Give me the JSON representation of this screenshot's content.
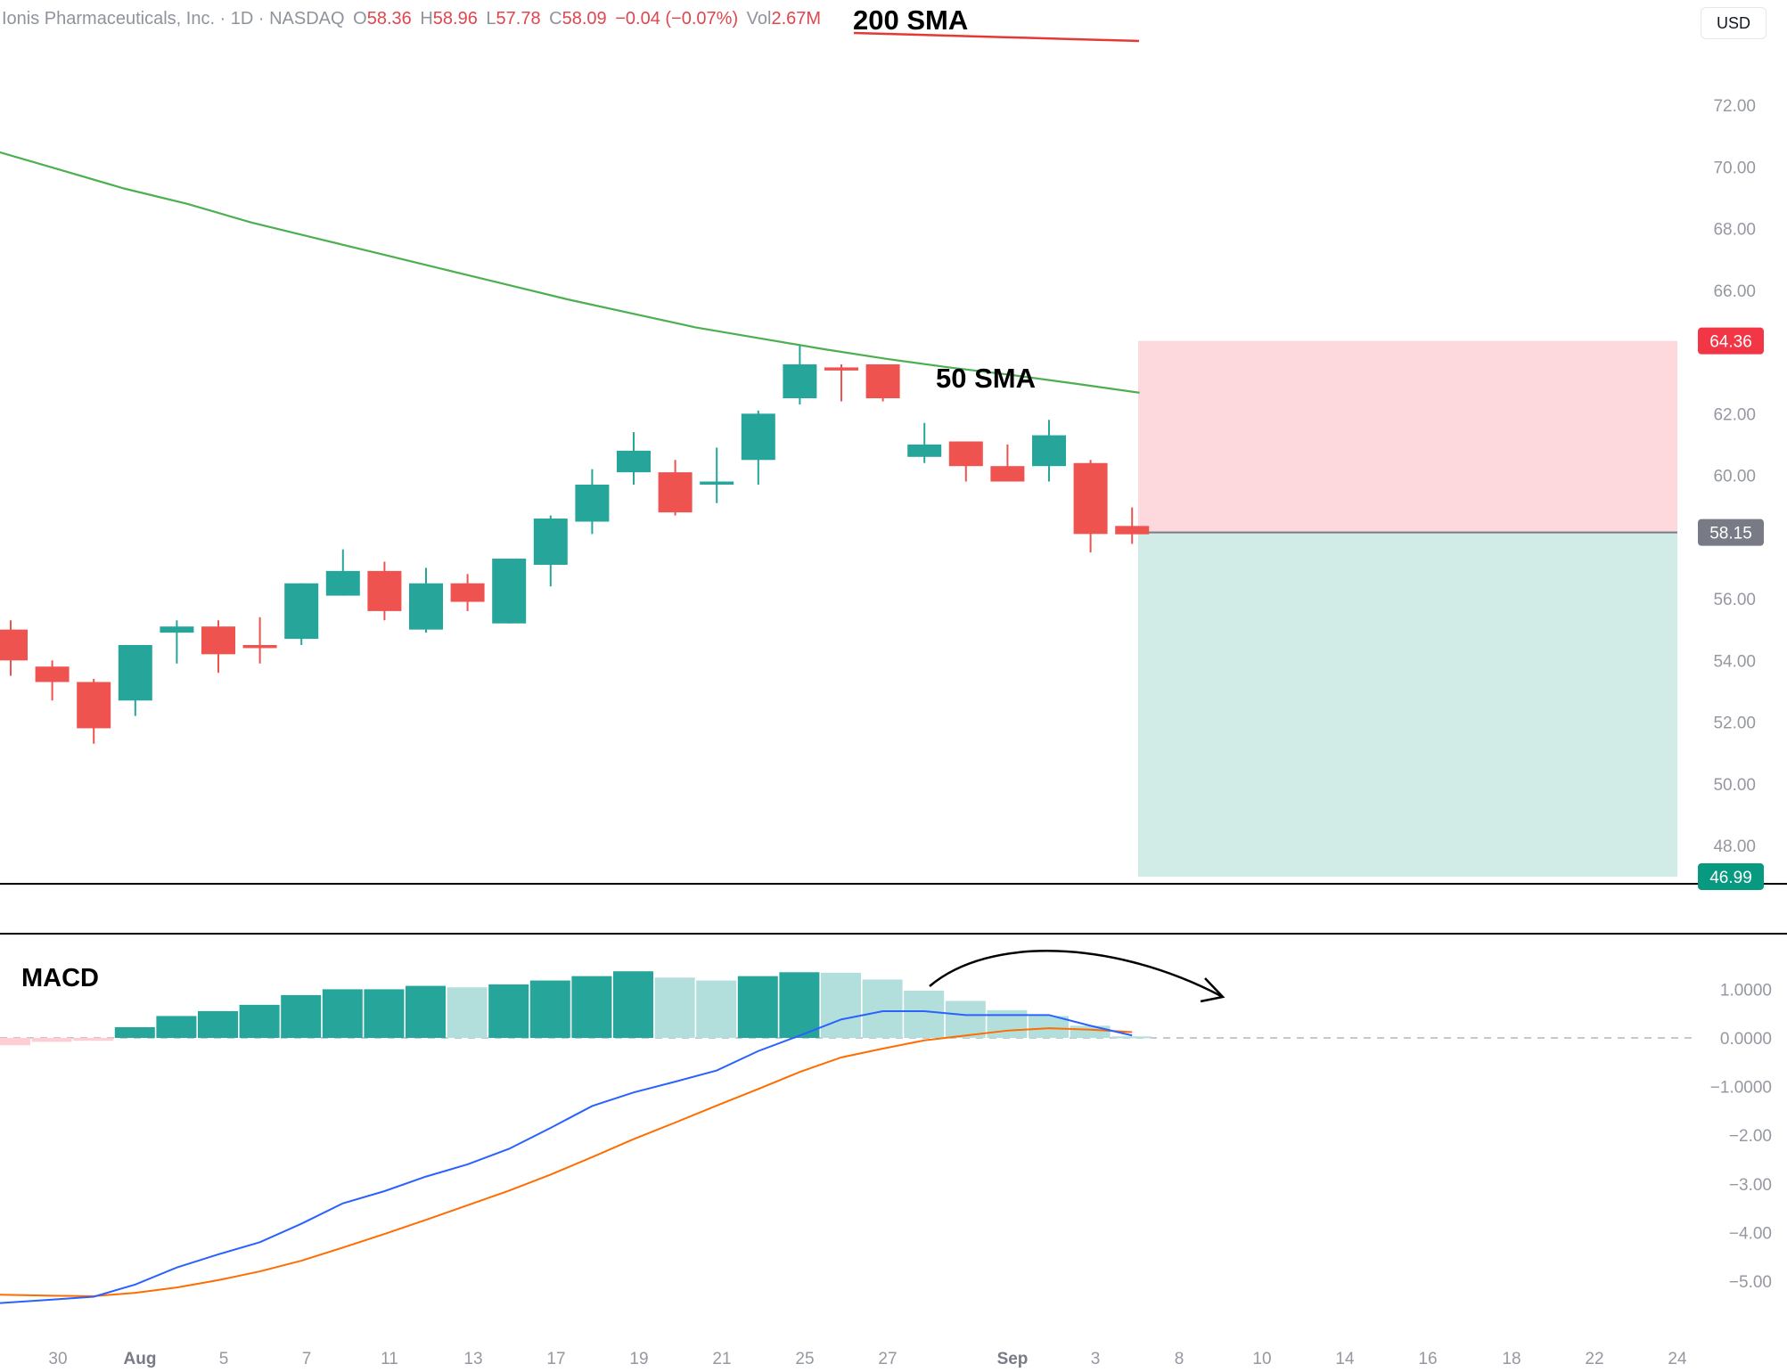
{
  "header": {
    "name": "Ionis Pharmaceuticals, Inc. · 1D · NASDAQ",
    "o_label": "O",
    "o_value": "58.36",
    "h_label": "H",
    "h_value": "58.96",
    "l_label": "L",
    "l_value": "57.78",
    "c_label": "C",
    "c_value": "58.09",
    "change": "−0.04 (−0.07%)",
    "vol_label": "Vol",
    "vol_value": "2.67M"
  },
  "currency_button": "USD",
  "annotations": {
    "sma200": "200 SMA",
    "sma50": "50 SMA",
    "macd": "MACD"
  },
  "colors": {
    "up": "#26a69a",
    "down": "#ef5350",
    "sma50": "#4caf50",
    "sma200": "#e53935",
    "macd_line": "#2962ff",
    "signal_line": "#ff6d00",
    "hist_up_strong": "#26a69a",
    "hist_up_weak": "#b2dfdb",
    "hist_down_weak": "#ffcdd2",
    "stop_zone": "#fdd8dc",
    "target_zone": "#d1ebe6",
    "badge_stop": "#f23645",
    "badge_entry": "#787b86",
    "badge_target": "#089981"
  },
  "chart_data": [
    {
      "type": "candlestick",
      "title": "Ionis Pharmaceuticals, Inc. · 1D · NASDAQ",
      "ylim": [
        46.5,
        74
      ],
      "y_ticks": [
        "72.00",
        "70.00",
        "68.00",
        "66.00",
        "62.00",
        "60.00",
        "56.00",
        "54.00",
        "52.00",
        "50.00",
        "48.00"
      ],
      "x_ticks": [
        "30",
        "Aug",
        "5",
        "7",
        "11",
        "13",
        "17",
        "19",
        "21",
        "25",
        "27",
        "Sep",
        "3",
        "8",
        "10",
        "14",
        "16",
        "18",
        "22",
        "24"
      ],
      "x_ticks_bold": [
        "Aug",
        "Sep"
      ],
      "candles": [
        {
          "o": 55.0,
          "h": 55.3,
          "l": 53.5,
          "c": 54.0
        },
        {
          "o": 53.8,
          "h": 54.0,
          "l": 52.7,
          "c": 53.3
        },
        {
          "o": 53.3,
          "h": 53.4,
          "l": 51.3,
          "c": 51.8
        },
        {
          "o": 52.7,
          "h": 54.5,
          "l": 52.2,
          "c": 54.5
        },
        {
          "o": 54.9,
          "h": 55.3,
          "l": 53.9,
          "c": 55.1
        },
        {
          "o": 55.1,
          "h": 55.3,
          "l": 53.6,
          "c": 54.2
        },
        {
          "o": 54.5,
          "h": 55.4,
          "l": 53.9,
          "c": 54.4
        },
        {
          "o": 54.7,
          "h": 56.5,
          "l": 54.5,
          "c": 56.5
        },
        {
          "o": 56.1,
          "h": 57.6,
          "l": 56.1,
          "c": 56.9
        },
        {
          "o": 56.9,
          "h": 57.2,
          "l": 55.3,
          "c": 55.6
        },
        {
          "o": 55.0,
          "h": 57.0,
          "l": 54.9,
          "c": 56.5
        },
        {
          "o": 56.5,
          "h": 56.8,
          "l": 55.6,
          "c": 55.9
        },
        {
          "o": 55.2,
          "h": 57.3,
          "l": 55.2,
          "c": 57.3
        },
        {
          "o": 57.1,
          "h": 58.7,
          "l": 56.4,
          "c": 58.6
        },
        {
          "o": 58.5,
          "h": 60.2,
          "l": 58.1,
          "c": 59.7
        },
        {
          "o": 60.1,
          "h": 61.4,
          "l": 59.7,
          "c": 60.8
        },
        {
          "o": 60.1,
          "h": 60.5,
          "l": 58.7,
          "c": 58.8
        },
        {
          "o": 59.7,
          "h": 60.9,
          "l": 59.1,
          "c": 59.8
        },
        {
          "o": 60.5,
          "h": 62.1,
          "l": 59.7,
          "c": 62.0
        },
        {
          "o": 62.5,
          "h": 64.2,
          "l": 62.3,
          "c": 63.6
        },
        {
          "o": 63.5,
          "h": 63.6,
          "l": 62.4,
          "c": 63.4
        },
        {
          "o": 63.6,
          "h": 63.6,
          "l": 62.4,
          "c": 62.5
        },
        {
          "o": 60.6,
          "h": 61.7,
          "l": 60.4,
          "c": 61.0
        },
        {
          "o": 61.1,
          "h": 61.1,
          "l": 59.8,
          "c": 60.3
        },
        {
          "o": 60.3,
          "h": 61.0,
          "l": 59.8,
          "c": 59.8
        },
        {
          "o": 60.3,
          "h": 61.8,
          "l": 59.8,
          "c": 61.3
        },
        {
          "o": 60.4,
          "h": 60.5,
          "l": 57.5,
          "c": 58.1
        },
        {
          "o": 58.36,
          "h": 58.96,
          "l": 57.78,
          "c": 58.09
        }
      ],
      "sma50": [
        70.5,
        69.9,
        69.3,
        68.8,
        68.2,
        67.7,
        67.2,
        66.7,
        66.2,
        65.7,
        65.25,
        64.8,
        64.45,
        64.1,
        63.78,
        63.5,
        63.25,
        62.97,
        62.68
      ],
      "sma200": [
        73.67,
        73.65,
        73.63,
        73.6,
        73.56,
        73.52
      ],
      "position": {
        "stop": 64.36,
        "stop_label": "64.36",
        "entry": 58.15,
        "entry_label": "58.15",
        "target": 46.99,
        "target_label": "46.99"
      }
    },
    {
      "type": "macd",
      "title": "MACD",
      "ylim": [
        -5.35,
        1.55
      ],
      "y_ticks": [
        "1.0000",
        "0.0000",
        "−1.0000",
        "−2.00",
        "−3.00",
        "−4.00",
        "−5.00"
      ],
      "histogram": [
        -0.15,
        -0.08,
        -0.06,
        0.22,
        0.45,
        0.55,
        0.68,
        0.88,
        1.0,
        1.0,
        1.07,
        1.04,
        1.1,
        1.18,
        1.27,
        1.37,
        1.24,
        1.18,
        1.27,
        1.35,
        1.34,
        1.2,
        0.97,
        0.76,
        0.57,
        0.45,
        0.25,
        0.03
      ],
      "macd_line": [
        -5.45,
        -5.38,
        -5.32,
        -5.07,
        -4.72,
        -4.45,
        -4.2,
        -3.82,
        -3.4,
        -3.15,
        -2.85,
        -2.6,
        -2.28,
        -1.85,
        -1.4,
        -1.12,
        -0.9,
        -0.67,
        -0.27,
        0.05,
        0.38,
        0.55,
        0.55,
        0.47,
        0.47,
        0.47,
        0.25,
        0.05
      ],
      "signal_line": [
        -5.28,
        -5.3,
        -5.31,
        -5.24,
        -5.13,
        -4.98,
        -4.8,
        -4.58,
        -4.31,
        -4.03,
        -3.74,
        -3.44,
        -3.14,
        -2.81,
        -2.45,
        -2.08,
        -1.74,
        -1.39,
        -1.05,
        -0.7,
        -0.4,
        -0.22,
        -0.05,
        0.05,
        0.15,
        0.2,
        0.17,
        0.12
      ]
    }
  ]
}
